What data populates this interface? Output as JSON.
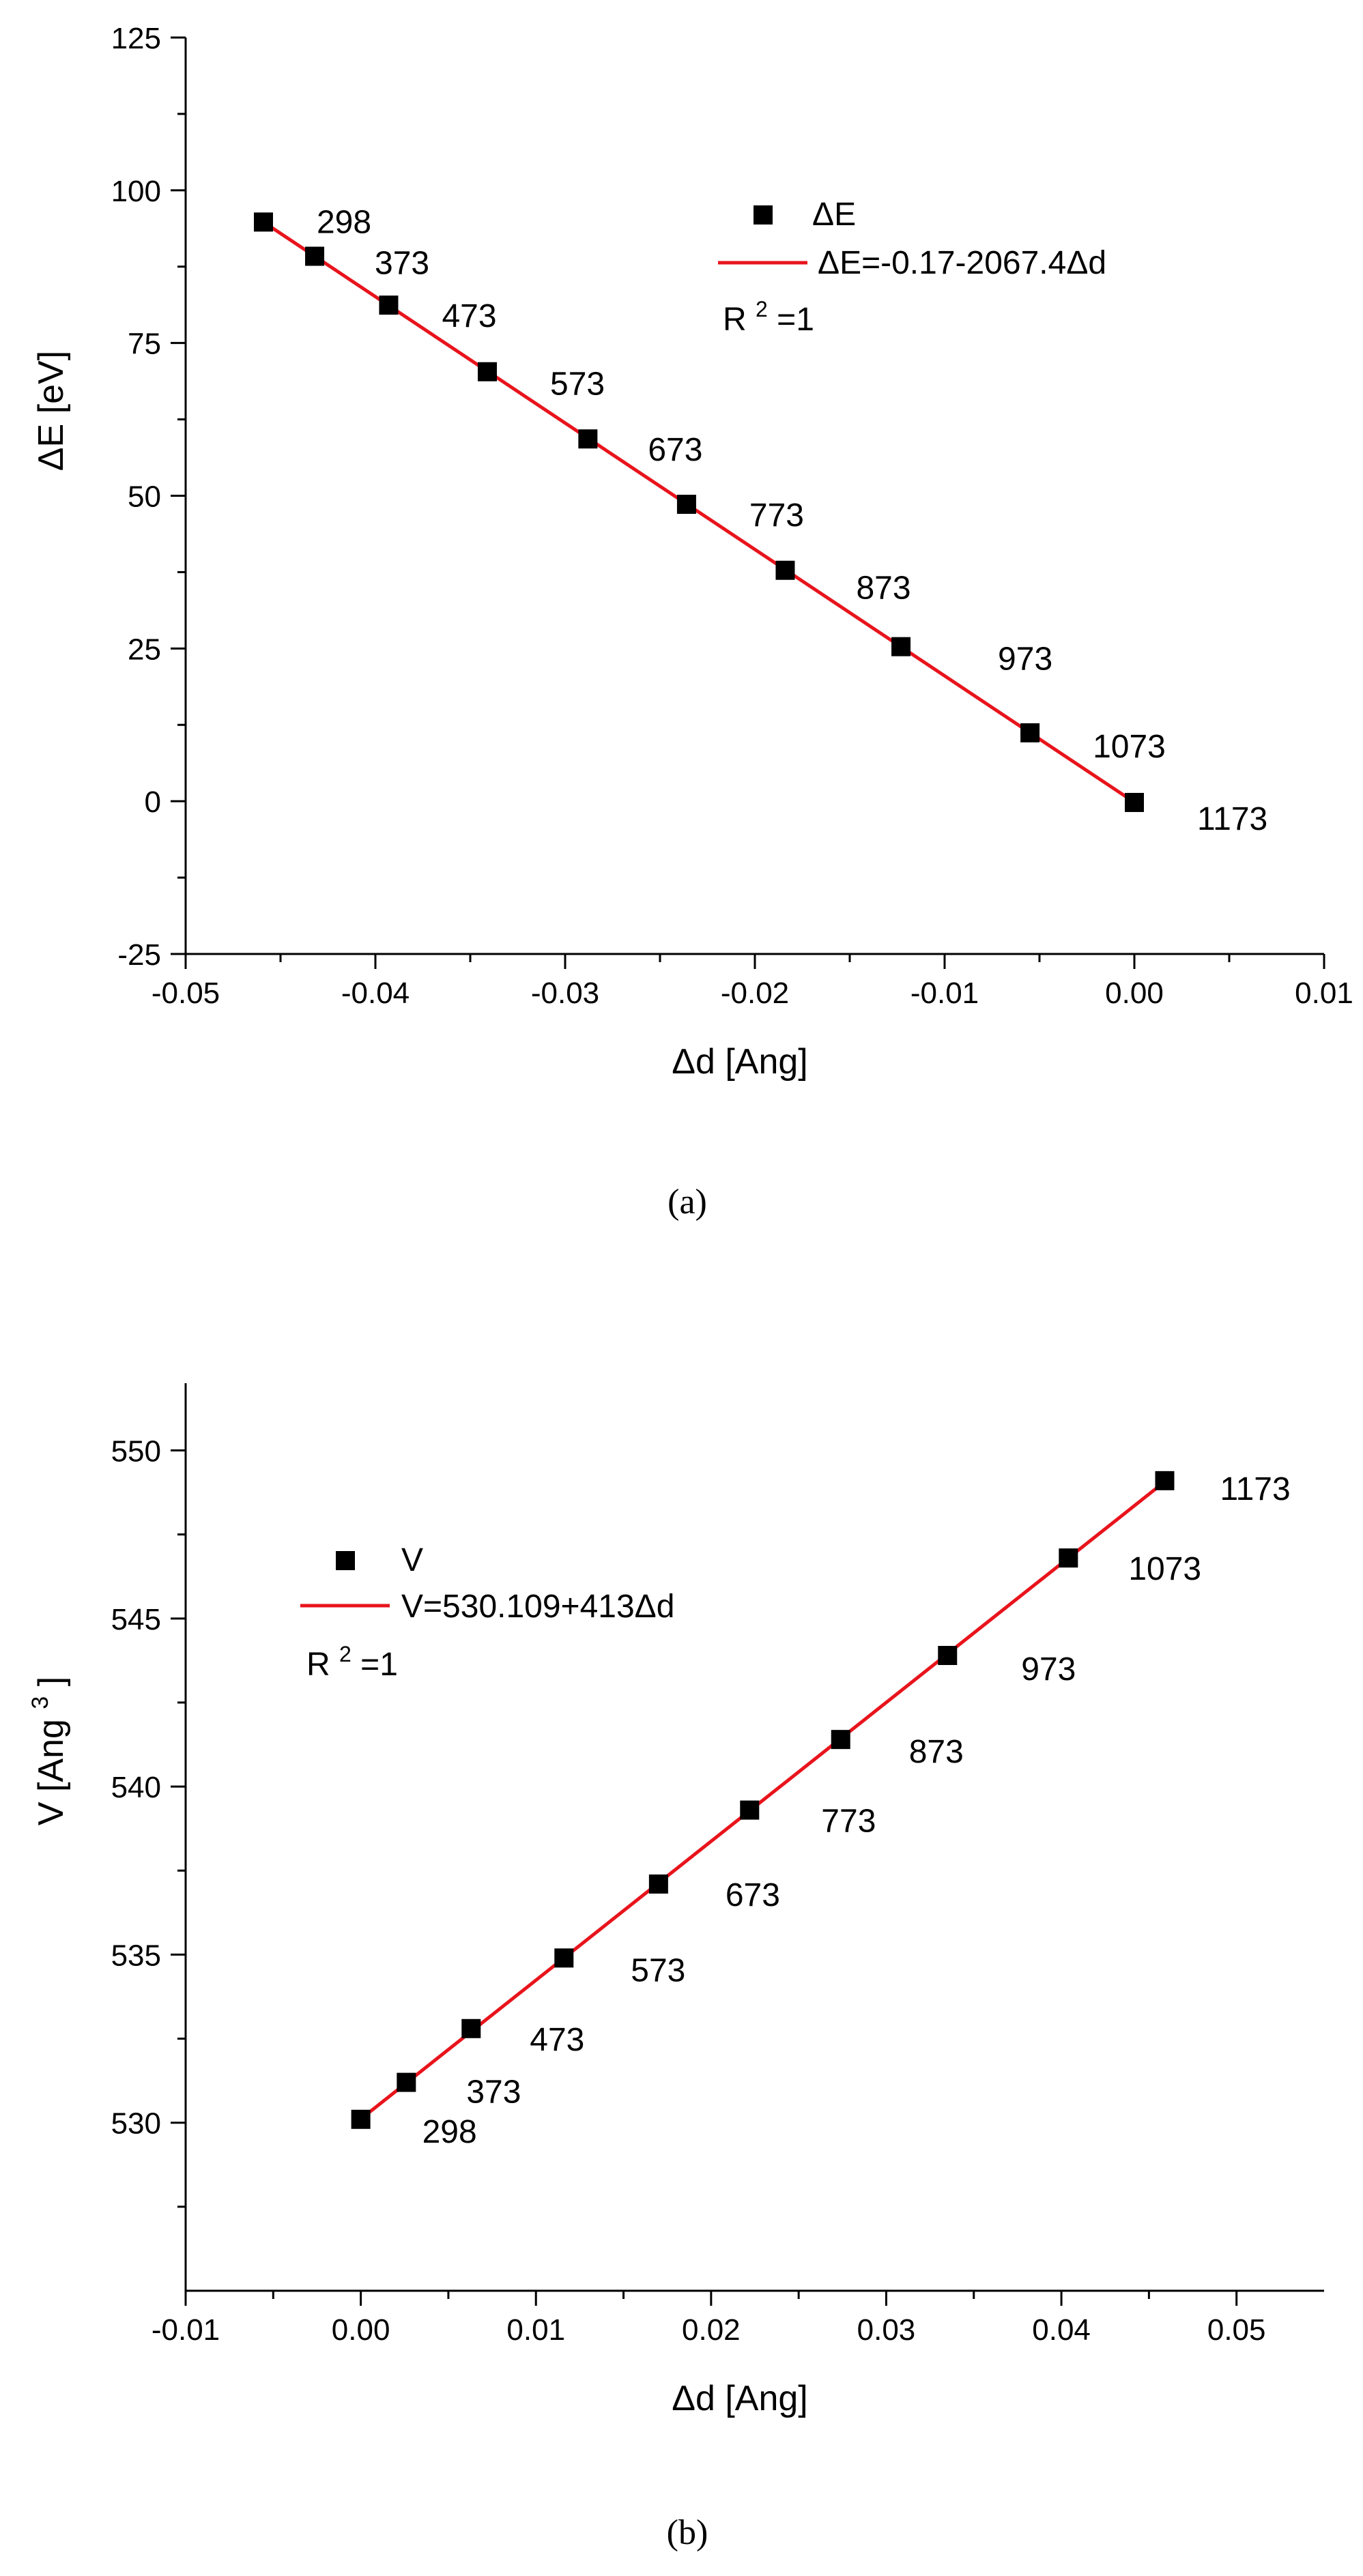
{
  "colors": {
    "marker": "#000000",
    "fit_line": "#e8141c",
    "axis": "#000000"
  },
  "chart_data": [
    {
      "type": "scatter",
      "caption": "(a)",
      "xlabel": "Δd [Ang]",
      "ylabel": "ΔE [eV]",
      "xlim": [
        -0.05,
        0.01
      ],
      "ylim": [
        -25,
        125
      ],
      "x_ticks": [
        "-0.05",
        "-0.04",
        "-0.03",
        "-0.02",
        "-0.01",
        "0.00",
        "0.01"
      ],
      "y_ticks": [
        "-25",
        "0",
        "25",
        "50",
        "75",
        "100",
        "125"
      ],
      "legend_position": "top-right",
      "series": [
        {
          "name": "ΔE",
          "kind": "scatter",
          "x": [
            -0.0459,
            -0.0432,
            -0.0393,
            -0.0341,
            -0.0288,
            -0.0236,
            -0.0184,
            -0.0123,
            -0.0055,
            0.0
          ],
          "y": [
            94.8,
            89.2,
            81.2,
            70.3,
            59.3,
            48.6,
            37.8,
            25.3,
            11.2,
            -0.2
          ],
          "point_labels": [
            "298",
            "373",
            "473",
            "573",
            "673",
            "773",
            "873",
            "973",
            "1073",
            "1173"
          ]
        },
        {
          "name": "ΔE=-0.17-2067.4Δd",
          "kind": "line",
          "x": [
            -0.0459,
            0.0
          ],
          "y": [
            94.8,
            -0.17
          ]
        }
      ],
      "annotation": {
        "base": "R",
        "sup": "2",
        "rest": "=1"
      }
    },
    {
      "type": "scatter",
      "caption": "(b)",
      "xlabel": "Δd [Ang]",
      "ylabel": {
        "base": "V [Ang",
        "sup": "3",
        "rest": "]"
      },
      "xlim": [
        -0.01,
        0.055
      ],
      "ylim": [
        525,
        552
      ],
      "x_ticks": [
        "-0.01",
        "0.00",
        "0.01",
        "0.02",
        "0.03",
        "0.04",
        "0.05"
      ],
      "y_ticks": [
        "530",
        "535",
        "540",
        "545",
        "550"
      ],
      "legend_position": "top-left",
      "series": [
        {
          "name": "V",
          "kind": "scatter",
          "x": [
            0.0,
            0.0026,
            0.0063,
            0.0116,
            0.017,
            0.0222,
            0.0274,
            0.0335,
            0.0404,
            0.0459
          ],
          "y": [
            530.1,
            531.2,
            532.8,
            534.9,
            537.1,
            539.3,
            541.4,
            543.9,
            546.8,
            549.1
          ],
          "point_labels": [
            "298",
            "373",
            "473",
            "573",
            "673",
            "773",
            "873",
            "973",
            "1073",
            "1173"
          ]
        },
        {
          "name": "V=530.109+413Δd",
          "kind": "line",
          "x": [
            0.0,
            0.0459
          ],
          "y": [
            530.109,
            549.07
          ]
        }
      ],
      "annotation": {
        "base": "R",
        "sup": "2",
        "rest": "=1"
      }
    }
  ]
}
